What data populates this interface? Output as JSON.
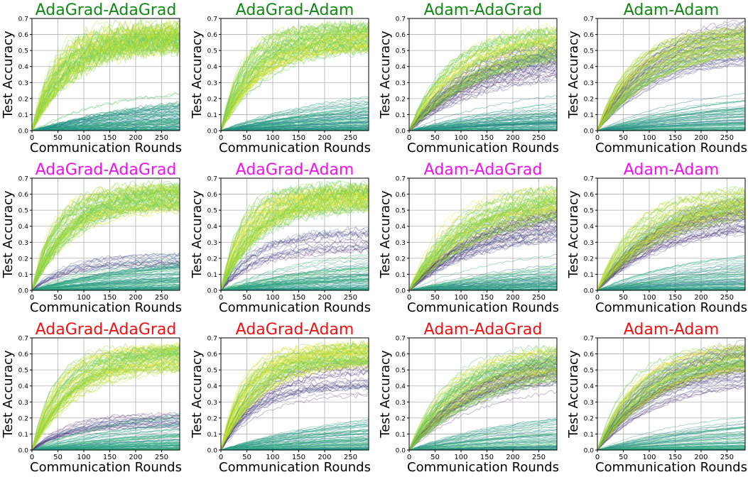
{
  "figure": {
    "xlabel": "Communication Rounds",
    "ylabel": "Test Accuracy"
  },
  "colors": {
    "row_title_colors": [
      "#118811",
      "#ee11ee",
      "#ee1111"
    ],
    "viridis": [
      "#440154",
      "#472c7a",
      "#3b518b",
      "#2c718e",
      "#21908d",
      "#27ad81",
      "#5cc863",
      "#aadc32",
      "#fde725"
    ],
    "grid": "#b0b0b0",
    "axis": "#000000"
  },
  "chart_data": [
    {
      "type": "line",
      "row": 0,
      "col": 0,
      "title": "AdaGrad-AdaGrad",
      "xlabel": "Communication Rounds",
      "ylabel": "Test Accuracy",
      "xlim": [
        0,
        285
      ],
      "ylim": [
        0,
        0.7
      ],
      "xticks": [
        0,
        50,
        100,
        150,
        200,
        250
      ],
      "yticks": [
        0.0,
        0.1,
        0.2,
        0.3,
        0.4,
        0.5,
        0.6,
        0.7
      ],
      "grid": true,
      "n_curves": 180,
      "profile": {
        "dark_fraction": 0.0,
        "dark_final": 0.5,
        "bright_final": 0.66,
        "rise_rounds": 60,
        "noise": 0.08,
        "slow_final_max": 0.3
      },
      "series_summary": {
        "final_range": [
          0.0,
          0.66
        ],
        "colormap": "viridis"
      }
    },
    {
      "type": "line",
      "row": 0,
      "col": 1,
      "title": "AdaGrad-Adam",
      "xlabel": "Communication Rounds",
      "ylabel": "Test Accuracy",
      "xlim": [
        0,
        285
      ],
      "ylim": [
        0,
        0.7
      ],
      "xticks": [
        0,
        50,
        100,
        150,
        200,
        250
      ],
      "yticks": [
        0.0,
        0.1,
        0.2,
        0.3,
        0.4,
        0.5,
        0.6,
        0.7
      ],
      "grid": true,
      "n_curves": 180,
      "profile": {
        "dark_fraction": 0.0,
        "dark_final": 0.5,
        "bright_final": 0.66,
        "rise_rounds": 60,
        "noise": 0.05,
        "slow_final_max": 0.3
      },
      "series_summary": {
        "final_range": [
          0.0,
          0.66
        ],
        "colormap": "viridis"
      }
    },
    {
      "type": "line",
      "row": 0,
      "col": 2,
      "title": "Adam-AdaGrad",
      "xlabel": "Communication Rounds",
      "ylabel": "Test Accuracy",
      "xlim": [
        0,
        285
      ],
      "ylim": [
        0,
        0.7
      ],
      "xticks": [
        0,
        50,
        100,
        150,
        200,
        250
      ],
      "yticks": [
        0.0,
        0.1,
        0.2,
        0.3,
        0.4,
        0.5,
        0.6,
        0.7
      ],
      "grid": true,
      "n_curves": 180,
      "profile": {
        "dark_fraction": 0.25,
        "dark_final": 0.52,
        "bright_final": 0.66,
        "rise_rounds": 110,
        "noise": 0.05,
        "slow_final_max": 0.3
      },
      "series_summary": {
        "final_range": [
          0.0,
          0.66
        ],
        "colormap": "viridis"
      }
    },
    {
      "type": "line",
      "row": 0,
      "col": 3,
      "title": "Adam-Adam",
      "xlabel": "Communication Rounds",
      "ylabel": "Test Accuracy",
      "xlim": [
        0,
        285
      ],
      "ylim": [
        0,
        0.7
      ],
      "xticks": [
        0,
        50,
        100,
        150,
        200,
        250
      ],
      "yticks": [
        0.0,
        0.1,
        0.2,
        0.3,
        0.4,
        0.5,
        0.6,
        0.7
      ],
      "grid": true,
      "n_curves": 180,
      "profile": {
        "dark_fraction": 0.25,
        "dark_final": 0.63,
        "bright_final": 0.66,
        "rise_rounds": 90,
        "noise": 0.03,
        "slow_final_max": 0.3
      },
      "series_summary": {
        "final_range": [
          0.0,
          0.66
        ],
        "colormap": "viridis"
      }
    },
    {
      "type": "line",
      "row": 1,
      "col": 0,
      "title": "AdaGrad-AdaGrad",
      "xlabel": "Communication Rounds",
      "ylabel": "Test Accuracy",
      "xlim": [
        0,
        285
      ],
      "ylim": [
        0,
        0.7
      ],
      "xticks": [
        0,
        50,
        100,
        150,
        200,
        250
      ],
      "yticks": [
        0.0,
        0.1,
        0.2,
        0.3,
        0.4,
        0.5,
        0.6,
        0.7
      ],
      "grid": true,
      "n_curves": 180,
      "profile": {
        "dark_fraction": 0.1,
        "dark_final": 0.2,
        "bright_final": 0.66,
        "rise_rounds": 60,
        "noise": 0.05,
        "slow_final_max": 0.3
      },
      "series_summary": {
        "final_range": [
          0.0,
          0.66
        ],
        "colormap": "viridis"
      }
    },
    {
      "type": "line",
      "row": 1,
      "col": 1,
      "title": "AdaGrad-Adam",
      "xlabel": "Communication Rounds",
      "ylabel": "Test Accuracy",
      "xlim": [
        0,
        285
      ],
      "ylim": [
        0,
        0.7
      ],
      "xticks": [
        0,
        50,
        100,
        150,
        200,
        250
      ],
      "yticks": [
        0.0,
        0.1,
        0.2,
        0.3,
        0.4,
        0.5,
        0.6,
        0.7
      ],
      "grid": true,
      "n_curves": 180,
      "profile": {
        "dark_fraction": 0.1,
        "dark_final": 0.35,
        "bright_final": 0.65,
        "rise_rounds": 60,
        "noise": 0.06,
        "slow_final_max": 0.3
      },
      "series_summary": {
        "final_range": [
          0.0,
          0.65
        ],
        "colormap": "viridis"
      }
    },
    {
      "type": "line",
      "row": 1,
      "col": 2,
      "title": "Adam-AdaGrad",
      "xlabel": "Communication Rounds",
      "ylabel": "Test Accuracy",
      "xlim": [
        0,
        285
      ],
      "ylim": [
        0,
        0.7
      ],
      "xticks": [
        0,
        50,
        100,
        150,
        200,
        250
      ],
      "yticks": [
        0.0,
        0.1,
        0.2,
        0.3,
        0.4,
        0.5,
        0.6,
        0.7
      ],
      "grid": true,
      "n_curves": 180,
      "profile": {
        "dark_fraction": 0.25,
        "dark_final": 0.5,
        "bright_final": 0.66,
        "rise_rounds": 110,
        "noise": 0.05,
        "slow_final_max": 0.3
      },
      "series_summary": {
        "final_range": [
          0.0,
          0.66
        ],
        "colormap": "viridis"
      }
    },
    {
      "type": "line",
      "row": 1,
      "col": 3,
      "title": "Adam-Adam",
      "xlabel": "Communication Rounds",
      "ylabel": "Test Accuracy",
      "xlim": [
        0,
        285
      ],
      "ylim": [
        0,
        0.7
      ],
      "xticks": [
        0,
        50,
        100,
        150,
        200,
        250
      ],
      "yticks": [
        0.0,
        0.1,
        0.2,
        0.3,
        0.4,
        0.5,
        0.6,
        0.7
      ],
      "grid": true,
      "n_curves": 180,
      "profile": {
        "dark_fraction": 0.25,
        "dark_final": 0.55,
        "bright_final": 0.64,
        "rise_rounds": 100,
        "noise": 0.04,
        "slow_final_max": 0.3
      },
      "series_summary": {
        "final_range": [
          0.0,
          0.64
        ],
        "colormap": "viridis"
      }
    },
    {
      "type": "line",
      "row": 2,
      "col": 0,
      "title": "AdaGrad-AdaGrad",
      "xlabel": "Communication Rounds",
      "ylabel": "Test Accuracy",
      "xlim": [
        0,
        285
      ],
      "ylim": [
        0,
        0.7
      ],
      "xticks": [
        0,
        50,
        100,
        150,
        200,
        250
      ],
      "yticks": [
        0.0,
        0.1,
        0.2,
        0.3,
        0.4,
        0.5,
        0.6,
        0.7
      ],
      "grid": true,
      "n_curves": 180,
      "profile": {
        "dark_fraction": 0.1,
        "dark_final": 0.2,
        "bright_final": 0.66,
        "rise_rounds": 65,
        "noise": 0.04,
        "slow_final_max": 0.3
      },
      "series_summary": {
        "final_range": [
          0.0,
          0.66
        ],
        "colormap": "viridis"
      }
    },
    {
      "type": "line",
      "row": 2,
      "col": 1,
      "title": "AdaGrad-Adam",
      "xlabel": "Communication Rounds",
      "ylabel": "Test Accuracy",
      "xlim": [
        0,
        285
      ],
      "ylim": [
        0,
        0.7
      ],
      "xticks": [
        0,
        50,
        100,
        150,
        200,
        250
      ],
      "yticks": [
        0.0,
        0.1,
        0.2,
        0.3,
        0.4,
        0.5,
        0.6,
        0.7
      ],
      "grid": true,
      "n_curves": 180,
      "profile": {
        "dark_fraction": 0.1,
        "dark_final": 0.5,
        "bright_final": 0.67,
        "rise_rounds": 60,
        "noise": 0.04,
        "slow_final_max": 0.3
      },
      "series_summary": {
        "final_range": [
          0.0,
          0.67
        ],
        "colormap": "viridis"
      }
    },
    {
      "type": "line",
      "row": 2,
      "col": 2,
      "title": "Adam-AdaGrad",
      "xlabel": "Communication Rounds",
      "ylabel": "Test Accuracy",
      "xlim": [
        0,
        285
      ],
      "ylim": [
        0,
        0.7
      ],
      "xticks": [
        0,
        50,
        100,
        150,
        200,
        250
      ],
      "yticks": [
        0.0,
        0.1,
        0.2,
        0.3,
        0.4,
        0.5,
        0.6,
        0.7
      ],
      "grid": true,
      "n_curves": 180,
      "profile": {
        "dark_fraction": 0.25,
        "dark_final": 0.6,
        "bright_final": 0.66,
        "rise_rounds": 110,
        "noise": 0.04,
        "slow_final_max": 0.3
      },
      "series_summary": {
        "final_range": [
          0.0,
          0.66
        ],
        "colormap": "viridis"
      }
    },
    {
      "type": "line",
      "row": 2,
      "col": 3,
      "title": "Adam-Adam",
      "xlabel": "Communication Rounds",
      "ylabel": "Test Accuracy",
      "xlim": [
        0,
        285
      ],
      "ylim": [
        0,
        0.7
      ],
      "xticks": [
        0,
        50,
        100,
        150,
        200,
        250
      ],
      "yticks": [
        0.0,
        0.1,
        0.2,
        0.3,
        0.4,
        0.5,
        0.6,
        0.7
      ],
      "grid": true,
      "n_curves": 180,
      "profile": {
        "dark_fraction": 0.25,
        "dark_final": 0.62,
        "bright_final": 0.67,
        "rise_rounds": 95,
        "noise": 0.03,
        "slow_final_max": 0.3
      },
      "series_summary": {
        "final_range": [
          0.0,
          0.67
        ],
        "colormap": "viridis"
      }
    }
  ]
}
